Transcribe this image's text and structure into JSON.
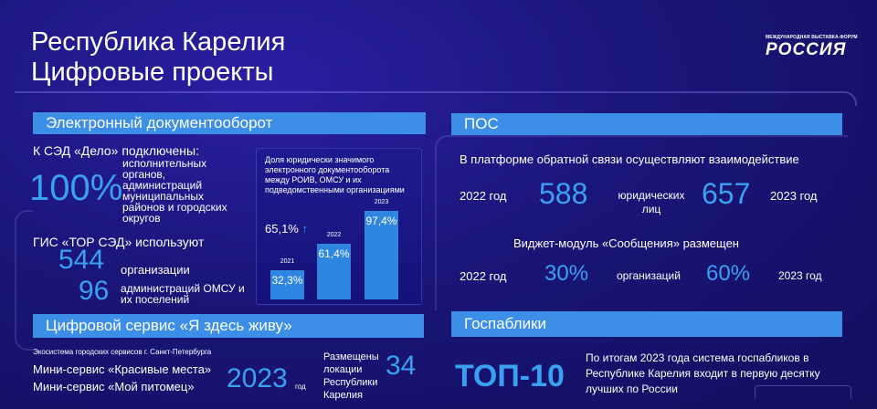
{
  "header": {
    "title_line1": "Республика Карелия",
    "title_line2": "Цифровые проекты",
    "logo_small": "МЕЖДУНАРОДНАЯ ВЫСТАВКА-ФОРУМ",
    "logo_big": "РОССИЯ"
  },
  "section_edo": {
    "heading": "Электронный документооборот",
    "sed_connected": "К СЭД «Дело» подключены:",
    "percent": "100%",
    "percent_desc": "исполнительных органов, администраций муниципальных районов и городских округов",
    "gis_uses": "ГИС «ТОР СЭД» используют",
    "orgs_num": "544",
    "orgs_label": "организации",
    "admins_num": "96",
    "admins_label": "администраций ОМСУ и их поселений"
  },
  "chart_data": {
    "type": "bar",
    "title": "Доля юридически значимого электронного документооборота между РОИВ, ОМСУ и их подведомственными организациями",
    "categories": [
      "2021",
      "2022",
      "2023"
    ],
    "values": [
      32.3,
      61.4,
      97.4
    ],
    "value_labels": [
      "32,3%",
      "61,4%",
      "97,4%"
    ],
    "growth_label": "65,1%",
    "ylim": [
      0,
      100
    ]
  },
  "section_pos": {
    "heading": "ПОС",
    "platform_text": "В платформе обратной связи осуществляют взаимодействие",
    "year_2022": "2022 год",
    "val_2022": "588",
    "mid_label": "юридических лиц",
    "val_2023": "657",
    "year_2023": "2023 год",
    "widget_text": "Виджет-модуль «Сообщения» размещен",
    "w_year_2022": "2022 год",
    "w_val_2022": "30%",
    "w_mid_label": "организаций",
    "w_val_2023": "60%",
    "w_year_2023": "2023 год"
  },
  "section_service": {
    "heading": "Цифровой сервис «Я здесь живу»",
    "eco_text": "Экосистема городских сервисов г. Санкт-Петербурга",
    "mini1": "Мини-сервис «Красивые места»",
    "mini2": "Мини-сервис «Мой питомец»",
    "year": "2023",
    "year_suffix": "год",
    "placed_text": "Размещены локации Республики Карелия",
    "placed_num": "34"
  },
  "section_publics": {
    "heading": "Госпаблики",
    "top": "ТОП-10",
    "desc": "По итогам 2023 года система госпабликов в Республике Карелия входит в первую десятку лучших по России"
  }
}
